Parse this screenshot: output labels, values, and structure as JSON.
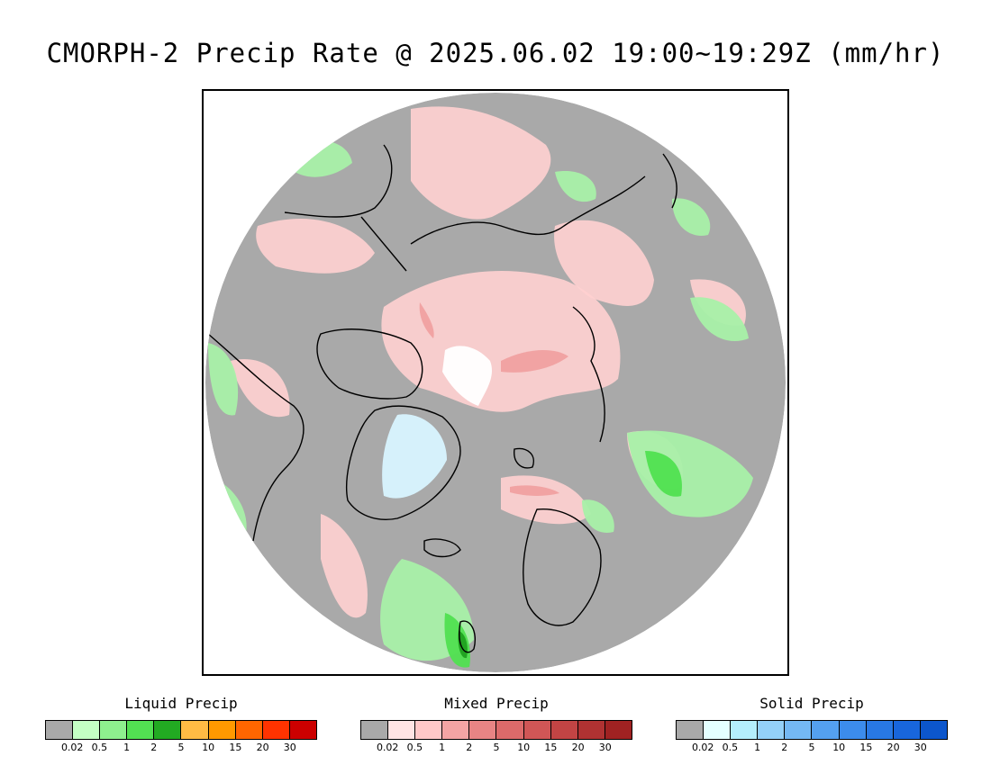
{
  "title": "CMORPH-2 Precip Rate @ 2025.06.02 19:00~19:29Z (mm/hr)",
  "map": {
    "projection": "north polar stereographic",
    "background_color": "#a9a9a9",
    "colors": {
      "coast": "#000000",
      "light_pink": "#ffd0d0",
      "pink": "#f0a0a0",
      "light_green": "#a8f0a8",
      "green": "#50e050",
      "dark_green": "#20a020",
      "light_blue": "#d8f4ff",
      "white": "#ffffff",
      "orange": "#ffa000"
    }
  },
  "legends": [
    {
      "title": "Liquid Precip",
      "colors": [
        "#a9a9a9",
        "#c4ffc4",
        "#8ef08e",
        "#52e052",
        "#22aa22",
        "#ffbb44",
        "#ff9900",
        "#ff6600",
        "#ff3300",
        "#cc0000"
      ],
      "ticks": [
        "0.02",
        "0.5",
        "1",
        "2",
        "5",
        "10",
        "15",
        "20",
        "30"
      ]
    },
    {
      "title": "Mixed Precip",
      "colors": [
        "#a9a9a9",
        "#ffe4e4",
        "#ffc8c8",
        "#f4a4a4",
        "#e88484",
        "#dc6a6a",
        "#d05656",
        "#c24444",
        "#b03232",
        "#a02222"
      ],
      "ticks": [
        "0.02",
        "0.5",
        "1",
        "2",
        "5",
        "10",
        "15",
        "20",
        "30"
      ]
    },
    {
      "title": "Solid Precip",
      "colors": [
        "#a9a9a9",
        "#e4ffff",
        "#b4eefc",
        "#94d0f8",
        "#74b8f4",
        "#54a0f0",
        "#3c8cec",
        "#2878e4",
        "#1866dc",
        "#0c56cc"
      ],
      "ticks": [
        "0.02",
        "0.5",
        "1",
        "2",
        "5",
        "10",
        "15",
        "20",
        "30"
      ]
    }
  ]
}
